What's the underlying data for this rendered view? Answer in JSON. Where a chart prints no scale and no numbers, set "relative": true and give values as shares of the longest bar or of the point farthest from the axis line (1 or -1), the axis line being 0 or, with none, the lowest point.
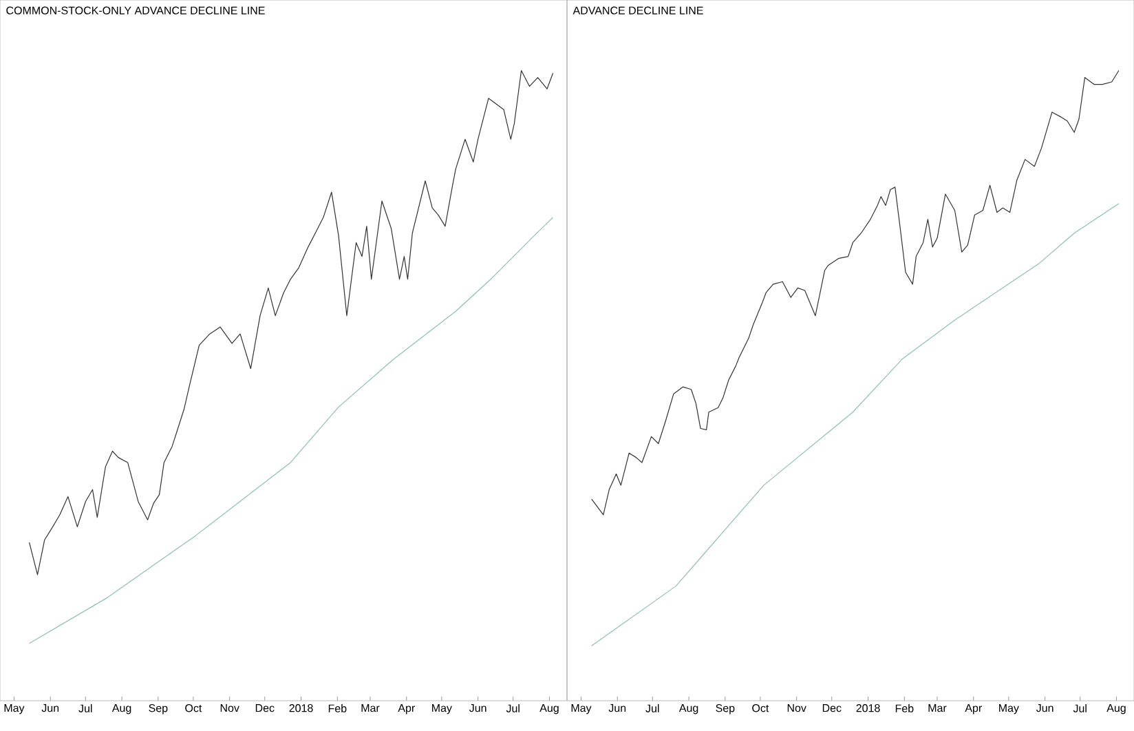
{
  "chart_data": [
    {
      "type": "line",
      "title": "COMMON-STOCK-ONLY ADVANCE DECLINE LINE",
      "relative": true,
      "xlim": [
        "2017-04-19",
        "2018-08-16"
      ],
      "xticks": [
        {
          "value": "2017-05-01",
          "label": "May"
        },
        {
          "value": "2017-06-01",
          "label": "Jun"
        },
        {
          "value": "2017-07-01",
          "label": "Jul"
        },
        {
          "value": "2017-08-01",
          "label": "Aug"
        },
        {
          "value": "2017-09-01",
          "label": "Sep"
        },
        {
          "value": "2017-10-01",
          "label": "Oct"
        },
        {
          "value": "2017-11-01",
          "label": "Nov"
        },
        {
          "value": "2017-12-01",
          "label": "Dec"
        },
        {
          "value": "2018-01-01",
          "label": "2018"
        },
        {
          "value": "2018-02-01",
          "label": "Feb"
        },
        {
          "value": "2018-03-01",
          "label": "Mar"
        },
        {
          "value": "2018-04-01",
          "label": "Apr"
        },
        {
          "value": "2018-05-01",
          "label": "May"
        },
        {
          "value": "2018-06-01",
          "label": "Jun"
        },
        {
          "value": "2018-07-01",
          "label": "Jul"
        },
        {
          "value": "2018-08-01",
          "label": "Aug"
        }
      ],
      "series": [
        {
          "color": "#333333",
          "x": [
            "2017-05-14",
            "2017-05-21",
            "2017-05-27",
            "2017-06-03",
            "2017-06-09",
            "2017-06-16",
            "2017-06-24",
            "2017-07-01",
            "2017-07-07",
            "2017-07-11",
            "2017-07-18",
            "2017-07-24",
            "2017-07-29",
            "2017-08-06",
            "2017-08-15",
            "2017-08-23",
            "2017-08-28",
            "2017-09-02",
            "2017-09-06",
            "2017-09-13",
            "2017-09-23",
            "2017-09-28",
            "2017-10-06",
            "2017-10-15",
            "2017-10-24",
            "2017-11-03",
            "2017-11-10",
            "2017-11-19",
            "2017-11-27",
            "2017-12-04",
            "2017-12-10",
            "2017-12-17",
            "2017-12-23",
            "2017-12-30",
            "2018-01-07",
            "2018-01-14",
            "2018-01-20",
            "2018-01-27",
            "2018-02-02",
            "2018-02-09",
            "2018-02-17",
            "2018-02-22",
            "2018-02-26",
            "2018-03-02",
            "2018-03-11",
            "2018-03-19",
            "2018-03-26",
            "2018-03-30",
            "2018-04-02",
            "2018-04-06",
            "2018-04-17",
            "2018-04-23",
            "2018-04-28",
            "2018-05-04",
            "2018-05-10",
            "2018-05-13",
            "2018-05-21",
            "2018-05-28",
            "2018-06-01",
            "2018-06-10",
            "2018-06-23",
            "2018-06-29",
            "2018-07-02",
            "2018-07-08",
            "2018-07-15",
            "2018-07-22",
            "2018-07-30",
            "2018-08-04"
          ],
          "values": [
            0.251,
            0.2,
            0.255,
            0.276,
            0.295,
            0.324,
            0.276,
            0.316,
            0.335,
            0.291,
            0.371,
            0.396,
            0.386,
            0.378,
            0.316,
            0.287,
            0.313,
            0.327,
            0.378,
            0.404,
            0.462,
            0.502,
            0.564,
            0.582,
            0.593,
            0.567,
            0.582,
            0.527,
            0.611,
            0.655,
            0.611,
            0.647,
            0.669,
            0.687,
            0.72,
            0.745,
            0.767,
            0.807,
            0.738,
            0.611,
            0.727,
            0.705,
            0.753,
            0.669,
            0.793,
            0.749,
            0.669,
            0.705,
            0.669,
            0.742,
            0.825,
            0.782,
            0.771,
            0.753,
            0.815,
            0.844,
            0.891,
            0.855,
            0.891,
            0.956,
            0.938,
            0.891,
            0.916,
            1,
            0.975,
            0.989,
            0.971,
            0.996
          ]
        },
        {
          "color": "#8fbfb0",
          "x": [
            "2017-05-14",
            "2017-07-20",
            "2017-10-03",
            "2017-12-23",
            "2018-02-02",
            "2018-03-21",
            "2018-05-13",
            "2018-06-12",
            "2018-07-19",
            "2018-08-04"
          ],
          "values": [
            0.091,
            0.164,
            0.262,
            0.378,
            0.466,
            0.542,
            0.618,
            0.669,
            0.738,
            0.767
          ]
        }
      ]
    },
    {
      "type": "line",
      "title": "ADVANCE DECLINE LINE",
      "relative": true,
      "xlim": [
        "2017-04-19",
        "2018-08-16"
      ],
      "xticks": [
        {
          "value": "2017-05-01",
          "label": "May"
        },
        {
          "value": "2017-06-01",
          "label": "Jun"
        },
        {
          "value": "2017-07-01",
          "label": "Jul"
        },
        {
          "value": "2017-08-01",
          "label": "Aug"
        },
        {
          "value": "2017-09-01",
          "label": "Sep"
        },
        {
          "value": "2017-10-01",
          "label": "Oct"
        },
        {
          "value": "2017-11-01",
          "label": "Nov"
        },
        {
          "value": "2017-12-01",
          "label": "Dec"
        },
        {
          "value": "2018-01-01",
          "label": "2018"
        },
        {
          "value": "2018-02-01",
          "label": "Feb"
        },
        {
          "value": "2018-03-01",
          "label": "Mar"
        },
        {
          "value": "2018-04-01",
          "label": "Apr"
        },
        {
          "value": "2018-05-01",
          "label": "May"
        },
        {
          "value": "2018-06-01",
          "label": "Jun"
        },
        {
          "value": "2018-07-01",
          "label": "Jul"
        },
        {
          "value": "2018-08-01",
          "label": "Aug"
        }
      ],
      "series": [
        {
          "color": "#333333",
          "x": [
            "2017-05-10",
            "2017-05-20",
            "2017-05-25",
            "2017-05-31",
            "2017-06-04",
            "2017-06-11",
            "2017-06-17",
            "2017-06-22",
            "2017-06-30",
            "2017-07-06",
            "2017-07-12",
            "2017-07-19",
            "2017-07-27",
            "2017-08-03",
            "2017-08-07",
            "2017-08-11",
            "2017-08-16",
            "2017-08-18",
            "2017-08-26",
            "2017-08-30",
            "2017-09-04",
            "2017-09-10",
            "2017-09-13",
            "2017-09-21",
            "2017-09-25",
            "2017-10-03",
            "2017-10-06",
            "2017-10-12",
            "2017-10-20",
            "2017-10-27",
            "2017-11-02",
            "2017-11-08",
            "2017-11-17",
            "2017-11-25",
            "2017-11-28",
            "2017-12-07",
            "2017-12-15",
            "2017-12-19",
            "2017-12-26",
            "2018-01-03",
            "2018-01-09",
            "2018-01-12",
            "2018-01-16",
            "2018-01-20",
            "2018-01-24",
            "2018-01-28",
            "2018-02-02",
            "2018-02-08",
            "2018-02-11",
            "2018-02-17",
            "2018-02-21",
            "2018-02-25",
            "2018-03-01",
            "2018-03-08",
            "2018-03-16",
            "2018-03-22",
            "2018-03-27",
            "2018-04-02",
            "2018-04-09",
            "2018-04-15",
            "2018-04-21",
            "2018-04-26",
            "2018-05-02",
            "2018-05-08",
            "2018-05-15",
            "2018-05-23",
            "2018-05-29",
            "2018-06-07",
            "2018-06-14",
            "2018-06-20",
            "2018-06-26",
            "2018-06-30",
            "2018-07-05",
            "2018-07-13",
            "2018-07-20",
            "2018-07-28",
            "2018-08-03"
          ],
          "values": [
            0.32,
            0.295,
            0.335,
            0.36,
            0.342,
            0.393,
            0.386,
            0.378,
            0.419,
            0.408,
            0.443,
            0.487,
            0.498,
            0.494,
            0.472,
            0.432,
            0.43,
            0.458,
            0.465,
            0.48,
            0.509,
            0.531,
            0.545,
            0.575,
            0.597,
            0.633,
            0.648,
            0.661,
            0.665,
            0.64,
            0.655,
            0.651,
            0.611,
            0.683,
            0.691,
            0.702,
            0.705,
            0.727,
            0.742,
            0.764,
            0.786,
            0.8,
            0.786,
            0.811,
            0.815,
            0.756,
            0.68,
            0.661,
            0.705,
            0.727,
            0.764,
            0.72,
            0.734,
            0.804,
            0.778,
            0.712,
            0.723,
            0.771,
            0.778,
            0.818,
            0.775,
            0.782,
            0.775,
            0.826,
            0.859,
            0.848,
            0.877,
            0.934,
            0.927,
            0.92,
            0.902,
            0.923,
            0.989,
            0.978,
            0.978,
            0.982,
            1
          ]
        },
        {
          "color": "#8fbfb0",
          "x": [
            "2017-05-10",
            "2017-07-21",
            "2017-10-04",
            "2017-12-19",
            "2018-01-30",
            "2018-03-16",
            "2018-05-27",
            "2018-06-26",
            "2018-08-03"
          ],
          "values": [
            0.087,
            0.182,
            0.342,
            0.458,
            0.542,
            0.604,
            0.694,
            0.742,
            0.789
          ]
        }
      ]
    }
  ]
}
